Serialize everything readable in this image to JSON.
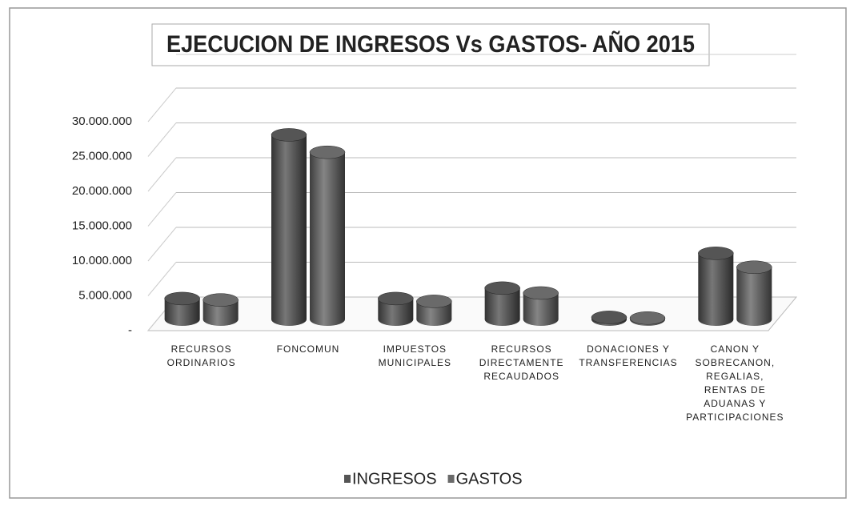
{
  "chart_data": {
    "type": "bar3d",
    "title": "EJECUCION DE INGRESOS Vs GASTOS- AÑO 2015",
    "categories": [
      "RECURSOS ORDINARIOS",
      "FONCOMUN",
      "IMPUESTOS MUNICIPALES",
      "RECURSOS DIRECTAMENTE RECAUDADOS",
      "DONACIONES Y TRANSFERENCIAS",
      "CANON Y SOBRECANON, REGALIAS, RENTAS DE ADUANAS Y PARTICIPACIONES"
    ],
    "series": [
      {
        "name": "INGRESOS",
        "color": "#555555",
        "values": [
          3000000,
          26500000,
          3000000,
          4500000,
          300000,
          9500000
        ]
      },
      {
        "name": "GASTOS",
        "color": "#6a6a6a",
        "values": [
          2800000,
          24000000,
          2600000,
          3800000,
          200000,
          7500000
        ]
      }
    ],
    "ylim": [
      0,
      30000000
    ],
    "yticks": [
      {
        "value": 0,
        "label": "-"
      },
      {
        "value": 5000000,
        "label": "5.000.000"
      },
      {
        "value": 10000000,
        "label": "10.000.000"
      },
      {
        "value": 15000000,
        "label": "15.000.000"
      },
      {
        "value": 20000000,
        "label": "20.000.000"
      },
      {
        "value": 25000000,
        "label": "25.000.000"
      },
      {
        "value": 30000000,
        "label": "30.000.000"
      }
    ],
    "grid": true,
    "legend": "bottom"
  }
}
